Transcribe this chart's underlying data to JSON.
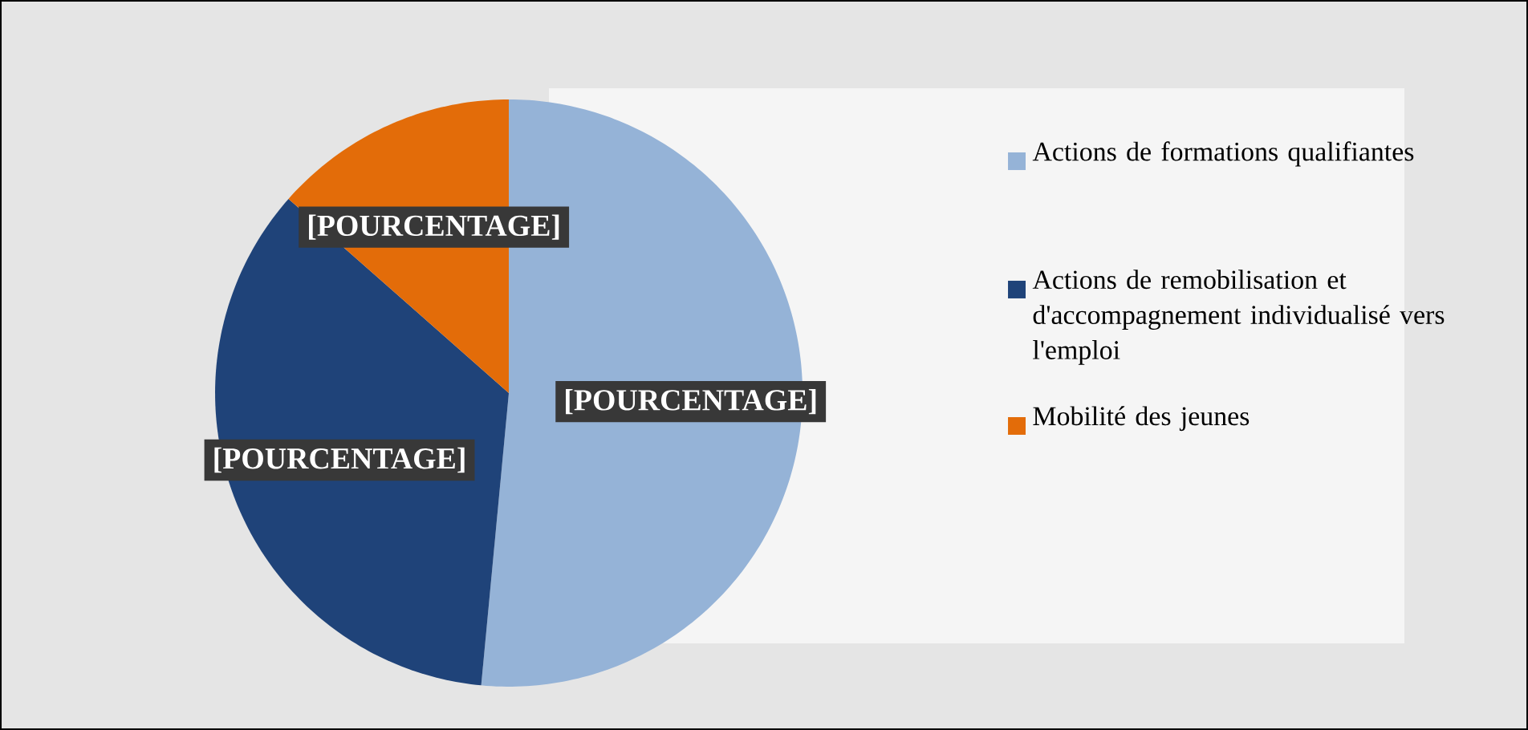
{
  "chart_data": {
    "type": "pie",
    "categories": [
      "Actions de formations qualifiantes",
      "Actions de remobilisation et d'accompagnement individualisé vers l'emploi",
      "Mobilité des jeunes"
    ],
    "values": [
      51.5,
      35,
      13.5
    ],
    "colors": [
      "#95b3d7",
      "#1f4379",
      "#e36c09"
    ],
    "value_labels": [
      "[POURCENTAGE]",
      "[POURCENTAGE]",
      "[POURCENTAGE]"
    ],
    "legend": "right"
  }
}
